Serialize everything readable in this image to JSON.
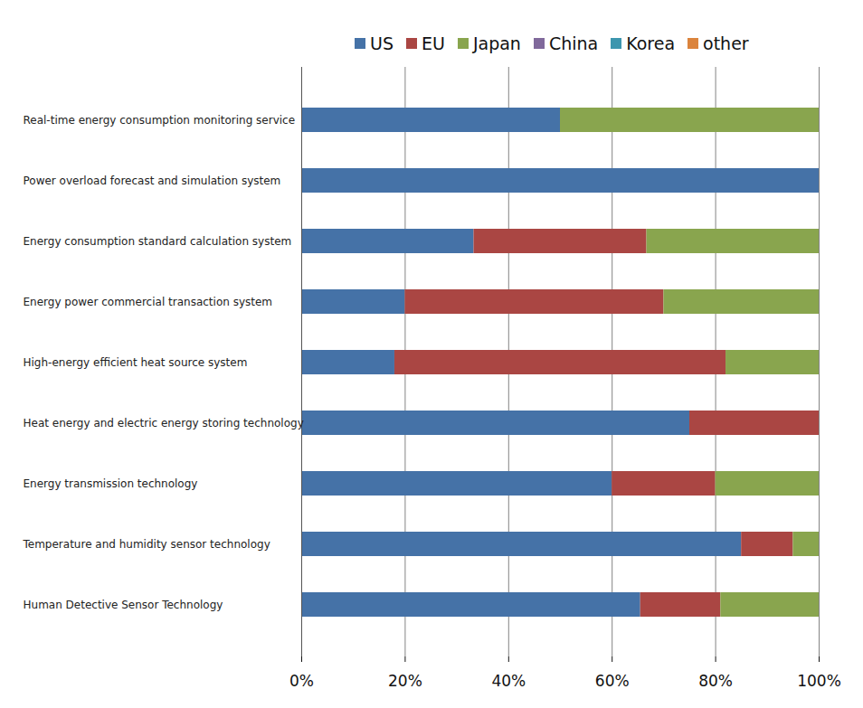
{
  "chart_data": {
    "type": "bar",
    "orientation": "horizontal",
    "stacked": true,
    "grid": true,
    "legend": "top",
    "categories": [
      "Real-time energy consumption monitoring service",
      "Power overload forecast and simulation system",
      "Energy consumption standard calculation system",
      "Energy power commercial transaction system",
      "High-energy efficient heat source system",
      "Heat energy and electric energy storing technology",
      "Energy transmission technology",
      "Temperature and humidity sensor technology",
      "Human Detective Sensor Technology"
    ],
    "series": [
      {
        "name": "US",
        "color": "#4572a7",
        "values": [
          50,
          100,
          33.3,
          20,
          18,
          75,
          60,
          85,
          65.5
        ]
      },
      {
        "name": "EU",
        "color": "#aa4643",
        "values": [
          0,
          0,
          33.4,
          50,
          64,
          25,
          20,
          10,
          15.5
        ]
      },
      {
        "name": "Japan",
        "color": "#89a54e",
        "values": [
          50,
          0,
          33.3,
          30,
          18,
          0,
          20,
          5,
          19
        ]
      },
      {
        "name": "China",
        "color": "#80699b",
        "values": [
          0,
          0,
          0,
          0,
          0,
          0,
          0,
          0,
          0
        ]
      },
      {
        "name": "Korea",
        "color": "#3d96ae",
        "values": [
          0,
          0,
          0,
          0,
          0,
          0,
          0,
          0,
          0
        ]
      },
      {
        "name": "other",
        "color": "#db843d",
        "values": [
          0,
          0,
          0,
          0,
          0,
          0,
          0,
          0,
          0
        ]
      }
    ],
    "xlim": [
      0,
      100
    ],
    "xticks": [
      {
        "value": 0,
        "label": "0%"
      },
      {
        "value": 20,
        "label": "20%"
      },
      {
        "value": 40,
        "label": "40%"
      },
      {
        "value": 60,
        "label": "60%"
      },
      {
        "value": 80,
        "label": "80%"
      },
      {
        "value": 100,
        "label": "100%"
      }
    ]
  }
}
